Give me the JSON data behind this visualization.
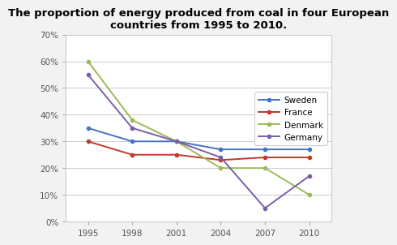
{
  "title": "The proportion of energy produced from coal in four European\ncountries from 1995 to 2010.",
  "years": [
    1995,
    1998,
    2001,
    2004,
    2007,
    2010
  ],
  "series": {
    "Sweden": {
      "values": [
        0.35,
        0.3,
        0.3,
        0.27,
        0.27,
        0.27
      ],
      "color": "#4472C4"
    },
    "France": {
      "values": [
        0.3,
        0.25,
        0.25,
        0.23,
        0.24,
        0.24
      ],
      "color": "#C0392B"
    },
    "Denmark": {
      "values": [
        0.6,
        0.38,
        0.3,
        0.2,
        0.2,
        0.1
      ],
      "color": "#9BBB59"
    },
    "Germany": {
      "values": [
        0.55,
        0.35,
        0.3,
        0.24,
        0.05,
        0.17
      ],
      "color": "#7B5EA7"
    }
  },
  "ylim": [
    0.0,
    0.7
  ],
  "yticks": [
    0.0,
    0.1,
    0.2,
    0.3,
    0.4,
    0.5,
    0.6,
    0.7
  ],
  "ytick_labels": [
    "0%",
    "10%",
    "20%",
    "30%",
    "40%",
    "50%",
    "60%",
    "70%"
  ],
  "xticks": [
    1995,
    1998,
    2001,
    2004,
    2007,
    2010
  ],
  "xlim": [
    1993.5,
    2011.5
  ],
  "background_color": "#F2F2F2",
  "plot_bg_color": "#FFFFFF",
  "legend_order": [
    "Sweden",
    "France",
    "Denmark",
    "Germany"
  ],
  "title_fontsize": 9.5,
  "axis_fontsize": 7.5,
  "legend_fontsize": 7.5,
  "line_width": 1.4,
  "marker": "o",
  "marker_size": 3
}
